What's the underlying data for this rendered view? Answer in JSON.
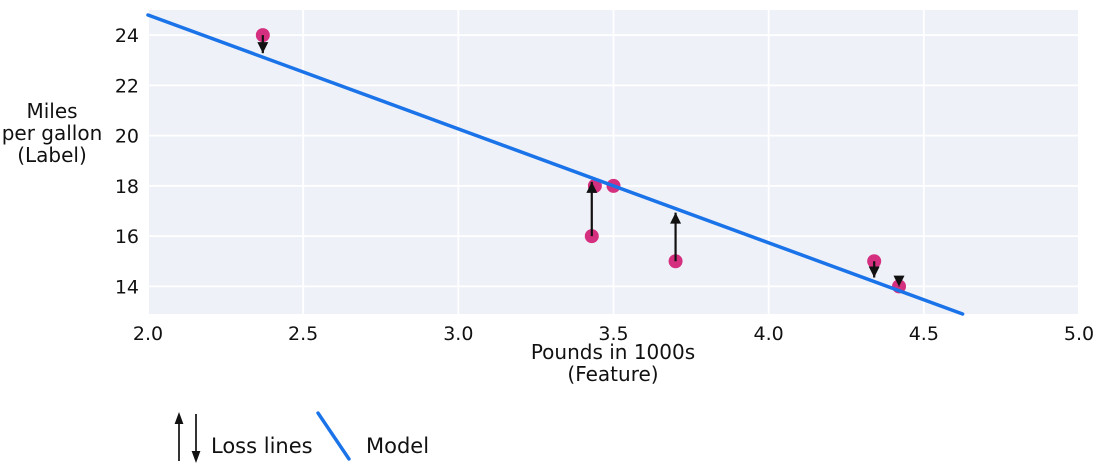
{
  "chart_data": {
    "type": "scatter",
    "title": "",
    "xlabel": "Pounds in 1000s\n(Feature)",
    "ylabel": "Miles\nper gallon\n(Label)",
    "xlim": [
      2.0,
      5.0
    ],
    "ylim": [
      12.9,
      25.0
    ],
    "grid": "on",
    "x_ticks": [
      {
        "v": 2.0,
        "label": "2.0"
      },
      {
        "v": 2.5,
        "label": "2.5"
      },
      {
        "v": 3.0,
        "label": "3.0"
      },
      {
        "v": 3.5,
        "label": "3.5"
      },
      {
        "v": 4.0,
        "label": "4.0"
      },
      {
        "v": 4.5,
        "label": "4.5"
      },
      {
        "v": 5.0,
        "label": "5.0"
      }
    ],
    "y_ticks": [
      {
        "v": 14,
        "label": "14"
      },
      {
        "v": 16,
        "label": "16"
      },
      {
        "v": 18,
        "label": "18"
      },
      {
        "v": 20,
        "label": "20"
      },
      {
        "v": 22,
        "label": "22"
      },
      {
        "v": 24,
        "label": "24"
      }
    ],
    "points": [
      {
        "x": 2.37,
        "y": 24
      },
      {
        "x": 3.44,
        "y": 18
      },
      {
        "x": 3.5,
        "y": 18
      },
      {
        "x": 3.43,
        "y": 16
      },
      {
        "x": 3.7,
        "y": 15
      },
      {
        "x": 4.34,
        "y": 15
      },
      {
        "x": 4.42,
        "y": 14
      }
    ],
    "model_line": {
      "x1": 2.0,
      "y1": 24.8,
      "x2": 4.625,
      "y2": 12.9
    },
    "loss_lines": [
      {
        "x": 2.37,
        "from": 24,
        "direction": "down"
      },
      {
        "x": 3.43,
        "from": 16,
        "direction": "up"
      },
      {
        "x": 3.7,
        "from": 15,
        "direction": "up"
      },
      {
        "x": 4.34,
        "from": 15,
        "direction": "down"
      },
      {
        "x": 4.42,
        "from": 14,
        "direction": "down"
      }
    ],
    "legend": [
      {
        "symbol": "loss-arrows",
        "label": "Loss lines"
      },
      {
        "symbol": "model-line",
        "label": "Model"
      }
    ],
    "legend_position": "bottom-left",
    "colors": {
      "model": "#1a73e8",
      "point": "#d5307f",
      "plot_bg": "#eef1f8",
      "grid": "#ffffff",
      "arrow": "#111111",
      "text": "#111111"
    }
  }
}
